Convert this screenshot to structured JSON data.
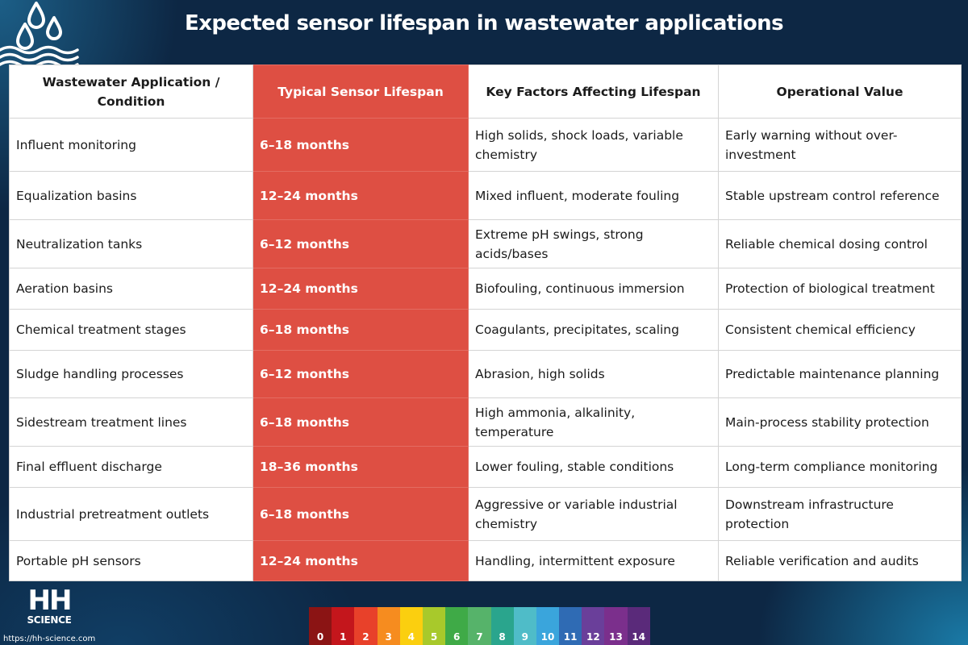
{
  "title": "Expected sensor lifespan in wastewater applications",
  "table": {
    "headers": [
      "Wastewater Application / Condition",
      "Typical Sensor Lifespan",
      "Key Factors Affecting Lifespan",
      "Operational Value"
    ],
    "rows": [
      [
        "Influent monitoring",
        "6–18 months",
        "High solids, shock loads, variable chemistry",
        "Early warning without over-investment"
      ],
      [
        "Equalization basins",
        "12–24 months",
        "Mixed influent, moderate fouling",
        "Stable upstream control reference"
      ],
      [
        "Neutralization tanks",
        "6–12 months",
        "Extreme pH swings, strong acids/bases",
        "Reliable chemical dosing control"
      ],
      [
        "Aeration basins",
        "12–24 months",
        "Biofouling, continuous immersion",
        "Protection of biological treatment"
      ],
      [
        "Chemical treatment stages",
        "6–18 months",
        "Coagulants, precipitates, scaling",
        "Consistent chemical efficiency"
      ],
      [
        "Sludge handling processes",
        "6–12 months",
        "Abrasion, high solids",
        "Predictable maintenance planning"
      ],
      [
        "Sidestream treatment lines",
        "6–18 months",
        "High ammonia, alkalinity, temperature",
        "Main-process stability protection"
      ],
      [
        "Final effluent discharge",
        "18–36 months",
        "Lower fouling, stable conditions",
        "Long-term compliance monitoring"
      ],
      [
        "Industrial pretreatment outlets",
        "6–18 months",
        "Aggressive or variable industrial chemistry",
        "Downstream infrastructure protection"
      ],
      [
        "Portable pH sensors",
        "12–24 months",
        "Handling, intermittent exposure",
        "Reliable verification and audits"
      ]
    ]
  },
  "highlight_color": "#de4f43",
  "logo": {
    "letters": "HH",
    "word": "SCIENCE",
    "url_text": "https://hh-science.com"
  },
  "ph_scale": [
    {
      "label": "0",
      "color": "#8b1414"
    },
    {
      "label": "1",
      "color": "#c4161c"
    },
    {
      "label": "2",
      "color": "#e8412a"
    },
    {
      "label": "3",
      "color": "#f68c1f"
    },
    {
      "label": "4",
      "color": "#fbcf0f"
    },
    {
      "label": "5",
      "color": "#a8c92b"
    },
    {
      "label": "6",
      "color": "#3faa47"
    },
    {
      "label": "7",
      "color": "#56b36a"
    },
    {
      "label": "8",
      "color": "#2aa58d"
    },
    {
      "label": "9",
      "color": "#4fbcc8"
    },
    {
      "label": "10",
      "color": "#3aa5dc"
    },
    {
      "label": "11",
      "color": "#2f6bb4"
    },
    {
      "label": "12",
      "color": "#6a3f9a"
    },
    {
      "label": "13",
      "color": "#7b2f8c"
    },
    {
      "label": "14",
      "color": "#5a2a7a"
    }
  ]
}
